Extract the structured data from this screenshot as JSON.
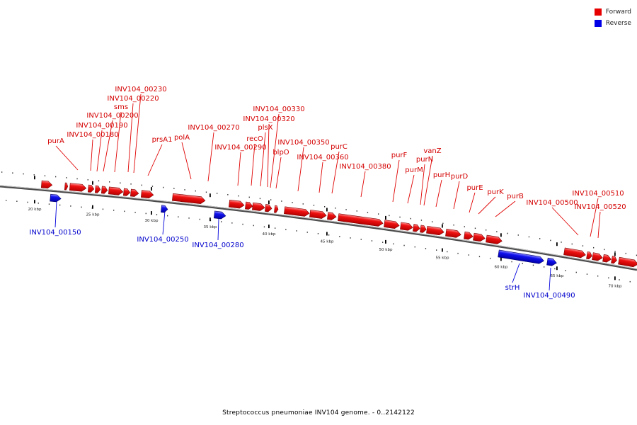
{
  "legend": {
    "forward_label": "Forward",
    "reverse_label": "Reverse",
    "forward_color": "#e60000",
    "reverse_color": "#0000e6"
  },
  "caption": "Streptococcus pneumoniae INV104 genome. - 0..2142122",
  "scale_ticks": [
    "20 kbp",
    "25 kbp",
    "30 kbp",
    "35 kbp",
    "40 kbp",
    "45 kbp",
    "50 kbp",
    "55 kbp",
    "60 kbp",
    "65 kbp",
    "70 kbp"
  ],
  "forward_genes": [
    {
      "label": "purA"
    },
    {
      "label": "INV104_00180"
    },
    {
      "label": "INV104_00190"
    },
    {
      "label": "INV104_00200"
    },
    {
      "label": "sms"
    },
    {
      "label": "INV104_00220"
    },
    {
      "label": "INV104_00230"
    },
    {
      "label": "prsA1"
    },
    {
      "label": "polA"
    },
    {
      "label": "INV104_00270"
    },
    {
      "label": "INV104_00290"
    },
    {
      "label": "recO"
    },
    {
      "label": "plsX"
    },
    {
      "label": "INV104_00320"
    },
    {
      "label": "INV104_00330"
    },
    {
      "label": "blpO"
    },
    {
      "label": "INV104_00350"
    },
    {
      "label": "INV104_00360"
    },
    {
      "label": "purC"
    },
    {
      "label": "INV104_00380"
    },
    {
      "label": "purF"
    },
    {
      "label": "purM"
    },
    {
      "label": "purN"
    },
    {
      "label": "vanZ"
    },
    {
      "label": "purH"
    },
    {
      "label": "purD"
    },
    {
      "label": "purE"
    },
    {
      "label": "purK"
    },
    {
      "label": "purB"
    },
    {
      "label": "INV104_00500"
    },
    {
      "label": "INV104_00510"
    },
    {
      "label": "INV104_00520"
    }
  ],
  "reverse_genes": [
    {
      "label": "INV104_00150"
    },
    {
      "label": "INV104_00250"
    },
    {
      "label": "INV104_00280"
    },
    {
      "label": "strH"
    },
    {
      "label": "INV104_00490"
    }
  ]
}
